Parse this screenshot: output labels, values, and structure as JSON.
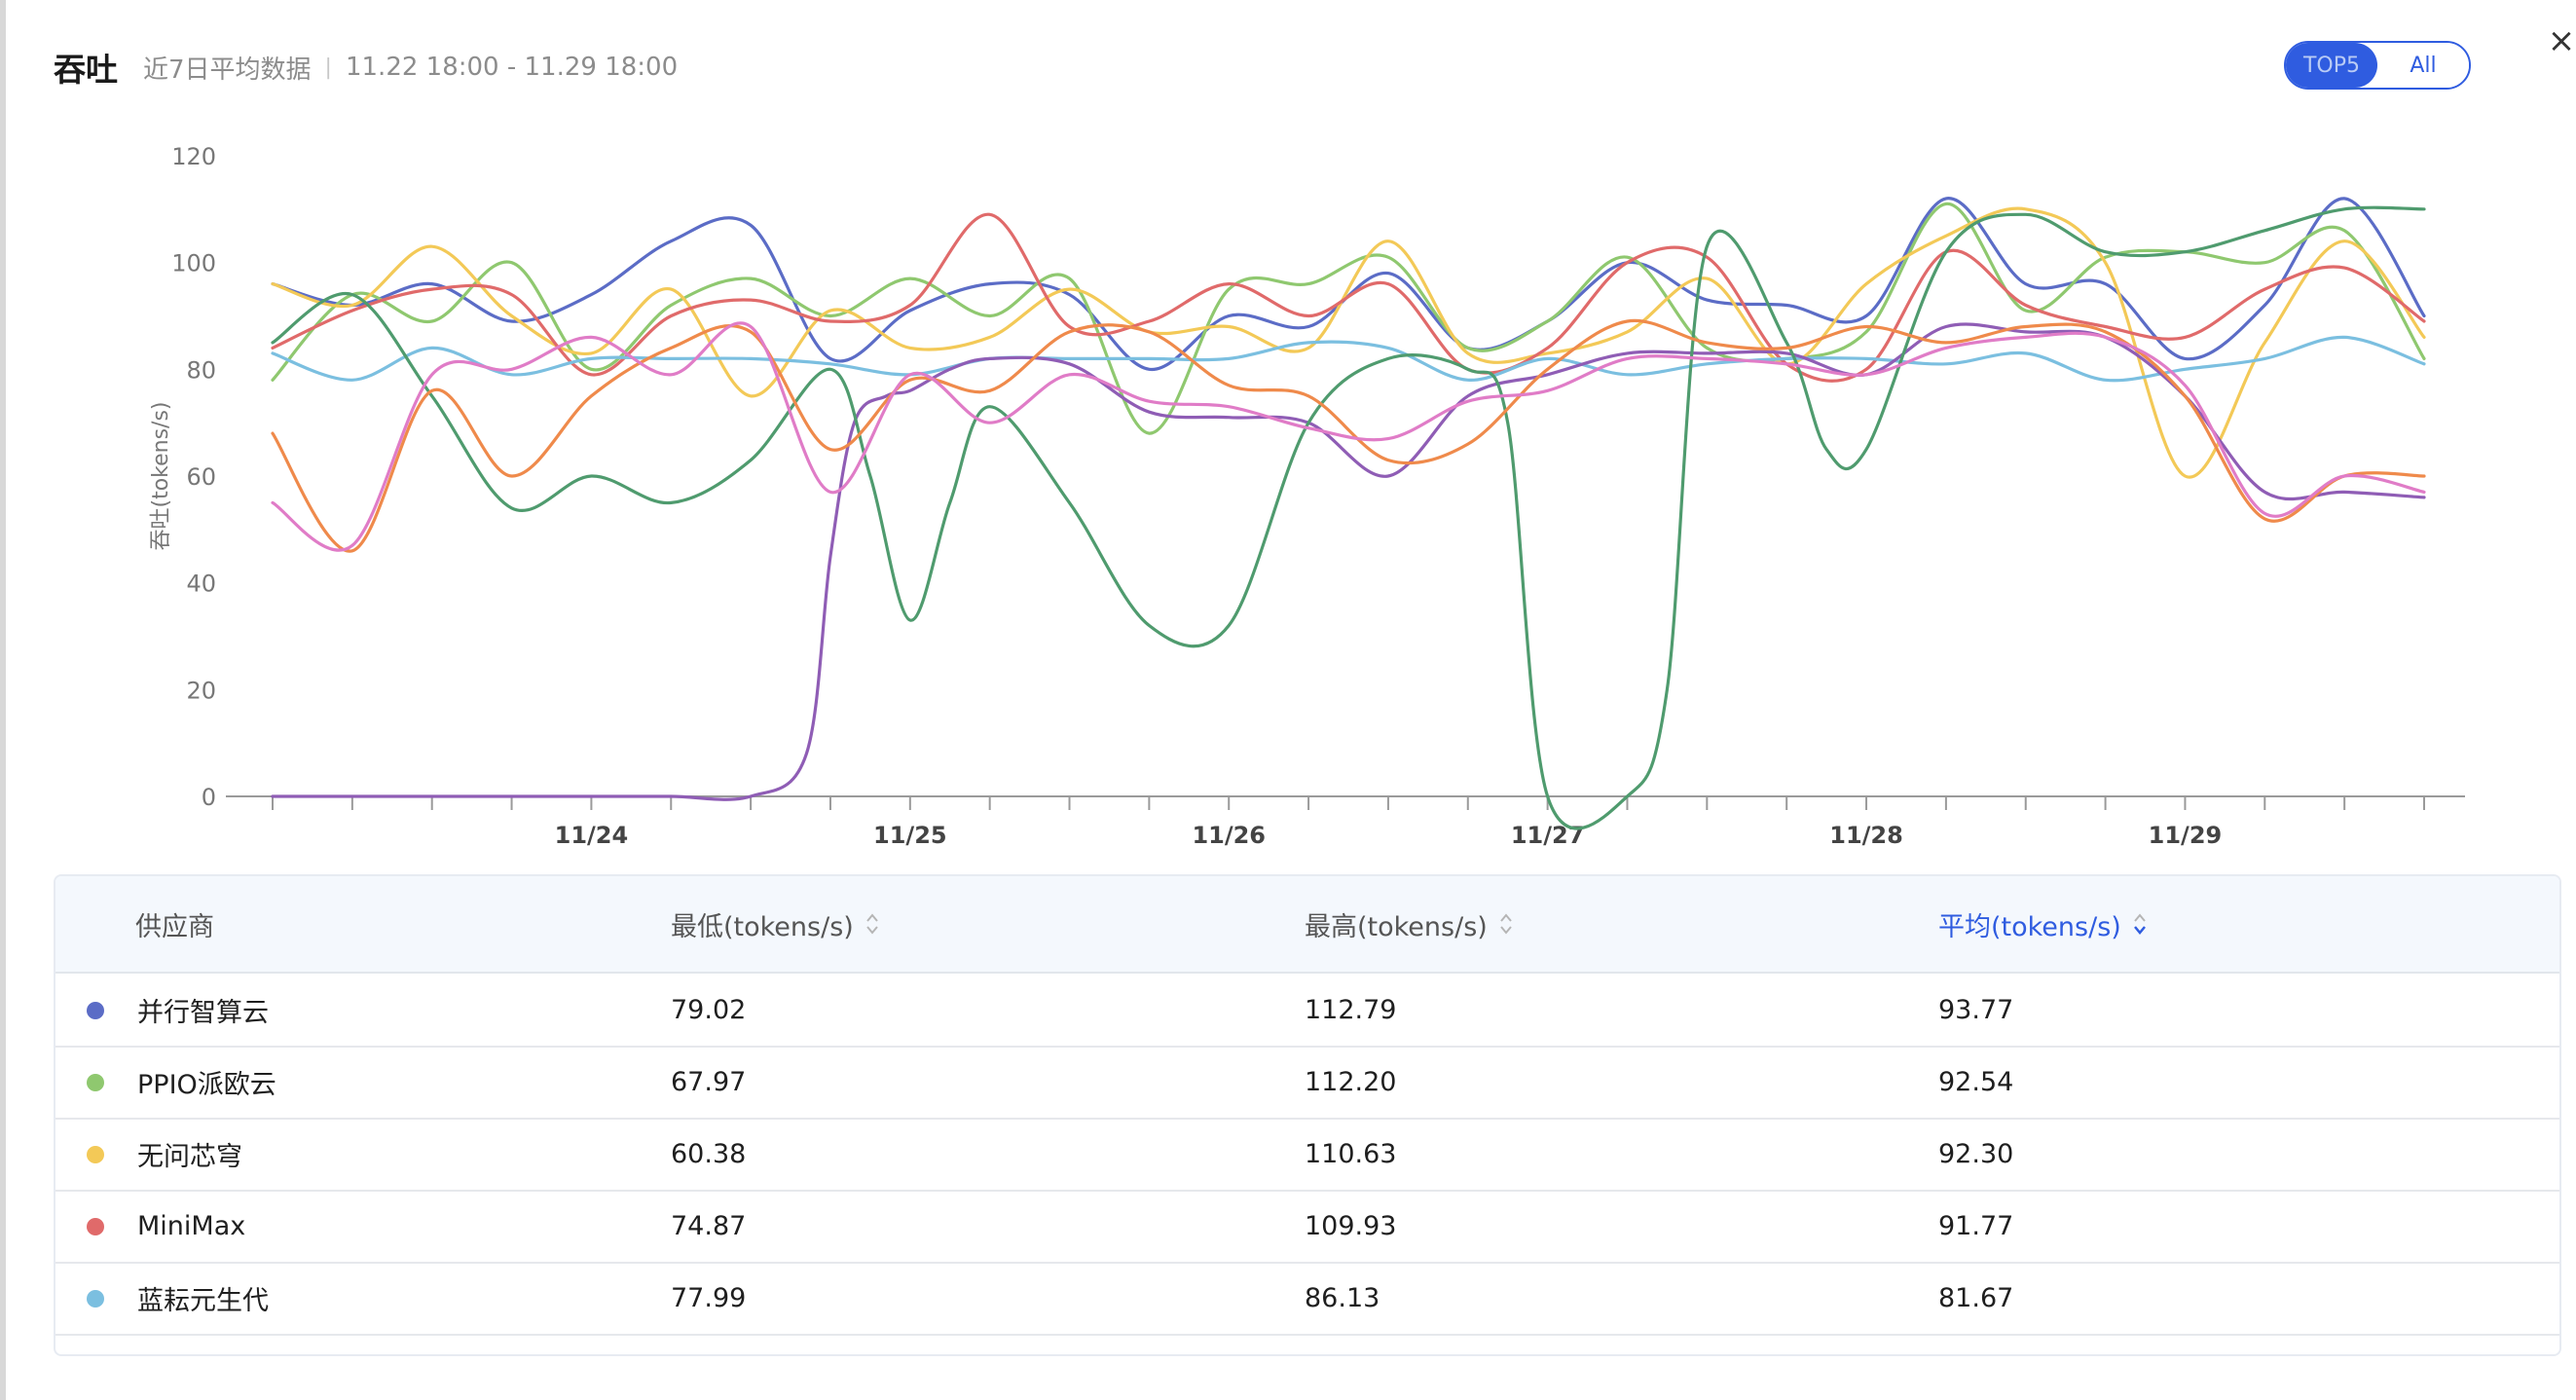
{
  "header": {
    "title": "吞吐",
    "subtitle": "近7日平均数据",
    "range": "11.22 18:00 - 11.29 18:00"
  },
  "toggle": {
    "top5_label": "TOP5",
    "all_label": "All"
  },
  "close_icon": "close-icon",
  "chart_data": {
    "type": "line",
    "title": "",
    "xlabel": "",
    "ylabel": "吞吐(tokens/s)",
    "ylim": [
      0,
      120
    ],
    "yticks": [
      0,
      20,
      40,
      60,
      80,
      100,
      120
    ],
    "x_tick_labels": [
      "11/24",
      "11/25",
      "11/26",
      "11/27",
      "11/28",
      "11/29"
    ],
    "x_label_positions": [
      4,
      8,
      12,
      16,
      20,
      24
    ],
    "x_range": [
      0,
      27
    ],
    "grid": false,
    "series": [
      {
        "name": "并行智算云",
        "color": "#5b6cc6",
        "x": [
          0,
          1,
          2,
          3,
          4,
          5,
          6,
          7,
          8,
          9,
          10,
          11,
          12,
          13,
          14,
          15,
          16,
          17,
          18,
          19,
          20,
          21,
          22,
          23,
          24,
          25,
          26,
          27
        ],
        "values": [
          96,
          92,
          96,
          89,
          94,
          104,
          107,
          82,
          91,
          96,
          94,
          80,
          90,
          88,
          98,
          84,
          89,
          100,
          93,
          92,
          90,
          112,
          96,
          96,
          82,
          92,
          112,
          90
        ]
      },
      {
        "name": "PPIO派欧云",
        "color": "#8fc86f",
        "x": [
          0,
          1,
          2,
          3,
          4,
          5,
          6,
          7,
          8,
          9,
          10,
          11,
          12,
          13,
          14,
          15,
          16,
          17,
          18,
          19,
          20,
          21,
          22,
          23,
          24,
          25,
          26,
          27
        ],
        "values": [
          78,
          94,
          89,
          100,
          80,
          92,
          97,
          90,
          97,
          90,
          97,
          68,
          95,
          96,
          101,
          84,
          89,
          101,
          84,
          82,
          87,
          111,
          91,
          101,
          102,
          100,
          106,
          82
        ]
      },
      {
        "name": "无问芯穹",
        "color": "#f3c957",
        "x": [
          0,
          1,
          2,
          3,
          4,
          5,
          6,
          7,
          8,
          9,
          10,
          11,
          12,
          13,
          14,
          15,
          16,
          17,
          18,
          19,
          20,
          21,
          22,
          23,
          24,
          25,
          26,
          27
        ],
        "values": [
          96,
          92,
          103,
          90,
          83,
          95,
          75,
          91,
          84,
          86,
          95,
          87,
          88,
          84,
          104,
          83,
          83,
          87,
          97,
          81,
          96,
          105,
          110,
          100,
          60,
          85,
          104,
          86
        ]
      },
      {
        "name": "MiniMax",
        "color": "#e06a6a",
        "x": [
          0,
          1,
          2,
          3,
          4,
          5,
          6,
          7,
          8,
          9,
          10,
          11,
          12,
          13,
          14,
          15,
          16,
          17,
          18,
          19,
          20,
          21,
          22,
          23,
          24,
          25,
          26,
          27
        ],
        "values": [
          84,
          91,
          95,
          94,
          79,
          90,
          93,
          89,
          92,
          109,
          88,
          89,
          96,
          90,
          96,
          80,
          84,
          100,
          101,
          81,
          80,
          102,
          92,
          88,
          86,
          95,
          99,
          89
        ]
      },
      {
        "name": "蓝耘元生代",
        "color": "#7bbfe0",
        "x": [
          0,
          1,
          2,
          3,
          4,
          5,
          6,
          7,
          8,
          9,
          10,
          11,
          12,
          13,
          14,
          15,
          16,
          17,
          18,
          19,
          20,
          21,
          22,
          23,
          24,
          25,
          26,
          27
        ],
        "values": [
          83,
          78,
          84,
          79,
          82,
          82,
          82,
          81,
          79,
          82,
          82,
          82,
          82,
          85,
          84,
          78,
          82,
          79,
          81,
          82,
          82,
          81,
          83,
          78,
          80,
          82,
          86,
          81
        ]
      },
      {
        "name": "",
        "color": "#8f5db5",
        "x": [
          0,
          1,
          2,
          3,
          4,
          5,
          6,
          6.7,
          7,
          7.3,
          7.7,
          8,
          8.5,
          9,
          10,
          11,
          12,
          13,
          14,
          15,
          16,
          17,
          18,
          19,
          20,
          21,
          22,
          23,
          24,
          25,
          26,
          27
        ],
        "values": [
          0,
          0,
          0,
          0,
          0,
          0,
          0,
          8,
          45,
          70,
          75,
          76,
          80,
          82,
          81,
          72,
          71,
          70,
          60,
          75,
          79,
          83,
          83,
          83,
          79,
          88,
          87,
          86,
          75,
          57,
          57,
          56
        ]
      },
      {
        "name": "",
        "color": "#4f9b6e",
        "x": [
          0,
          1,
          2,
          3,
          4,
          5,
          6,
          7,
          7.5,
          8,
          8.5,
          9,
          10,
          11,
          12,
          13,
          14,
          15,
          15.5,
          16,
          17,
          17.5,
          18,
          19,
          19.5,
          20,
          21,
          22,
          23,
          24,
          25,
          26,
          27
        ],
        "values": [
          85,
          94,
          75,
          54,
          60,
          55,
          63,
          80,
          60,
          33,
          55,
          73,
          55,
          32,
          32,
          70,
          82,
          80,
          70,
          0,
          0,
          20,
          103,
          85,
          65,
          65,
          102,
          109,
          102,
          102,
          106,
          110,
          110
        ]
      },
      {
        "name": "",
        "color": "#ef8a4b",
        "x": [
          0,
          1,
          2,
          3,
          4,
          5,
          6,
          7,
          8,
          9,
          10,
          11,
          12,
          13,
          14,
          15,
          16,
          17,
          18,
          19,
          20,
          21,
          22,
          23,
          24,
          25,
          26,
          27
        ],
        "values": [
          68,
          46,
          76,
          60,
          75,
          84,
          87,
          65,
          78,
          76,
          87,
          87,
          77,
          75,
          63,
          66,
          80,
          89,
          85,
          84,
          88,
          85,
          88,
          87,
          75,
          52,
          60,
          60
        ]
      },
      {
        "name": "",
        "color": "#e07cc7",
        "x": [
          0,
          1,
          2,
          3,
          4,
          5,
          6,
          7,
          8,
          9,
          10,
          11,
          12,
          13,
          14,
          15,
          16,
          17,
          18,
          19,
          20,
          21,
          22,
          23,
          24,
          25,
          26,
          27
        ],
        "values": [
          55,
          47,
          79,
          80,
          86,
          79,
          88,
          57,
          79,
          70,
          79,
          74,
          73,
          69,
          67,
          74,
          76,
          82,
          82,
          81,
          79,
          84,
          86,
          86,
          77,
          53,
          60,
          57
        ]
      }
    ]
  },
  "table": {
    "headers": {
      "provider": "供应商",
      "min": "最低(tokens/s)",
      "max": "最高(tokens/s)",
      "avg": "平均(tokens/s)"
    },
    "rows": [
      {
        "provider": "并行智算云",
        "color": "#5b6cc6",
        "min": "79.02",
        "max": "112.79",
        "avg": "93.77"
      },
      {
        "provider": "PPIO派欧云",
        "color": "#8fc86f",
        "min": "67.97",
        "max": "112.20",
        "avg": "92.54"
      },
      {
        "provider": "无问芯穹",
        "color": "#f3c957",
        "min": "60.38",
        "max": "110.63",
        "avg": "92.30"
      },
      {
        "provider": "MiniMax",
        "color": "#e06a6a",
        "min": "74.87",
        "max": "109.93",
        "avg": "91.77"
      },
      {
        "provider": "蓝耘元生代",
        "color": "#7bbfe0",
        "min": "77.99",
        "max": "86.13",
        "avg": "81.67"
      }
    ]
  },
  "colors": {
    "accent": "#2f5ce0"
  }
}
